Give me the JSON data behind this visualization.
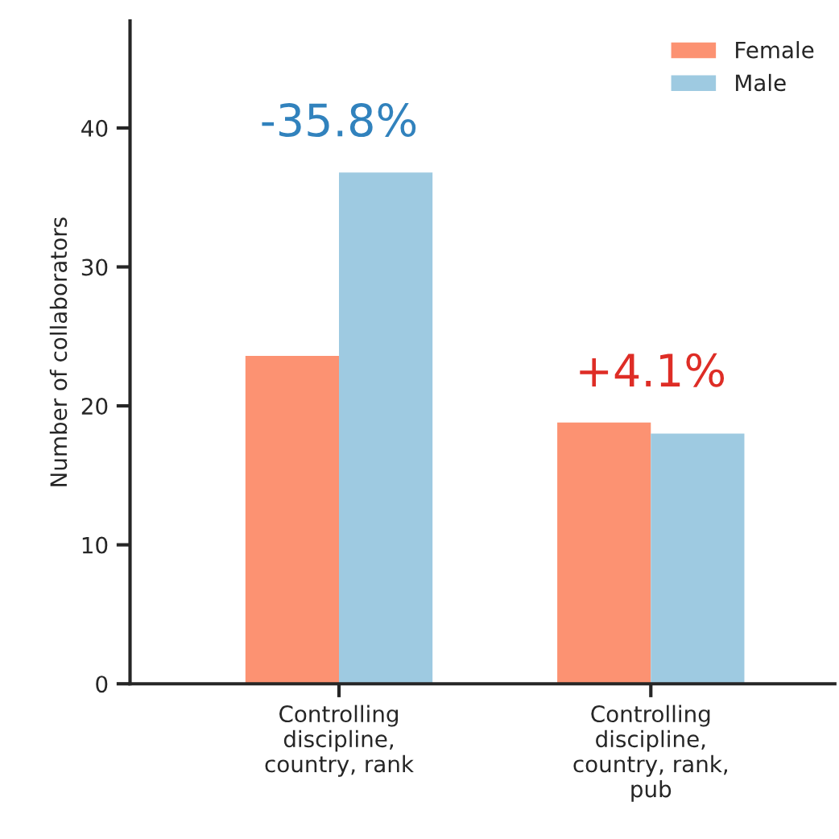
{
  "chart_data": {
    "type": "bar",
    "ylabel": "Number of collaborators",
    "categories": [
      "Controlling\ndiscipline,\ncountry, rank",
      "Controlling\ndiscipline,\ncountry, rank,\npub"
    ],
    "series": [
      {
        "name": "Female",
        "color": "#fc9272",
        "values": [
          23.6,
          18.8
        ]
      },
      {
        "name": "Male",
        "color": "#9ecae1",
        "values": [
          36.8,
          18.0
        ]
      }
    ],
    "ylim": [
      0,
      47.7
    ],
    "yticks": [
      0,
      10,
      20,
      30,
      40
    ],
    "annotations": [
      "-35.8%",
      "+4.1%"
    ],
    "grid": false,
    "legend": "top right"
  }
}
